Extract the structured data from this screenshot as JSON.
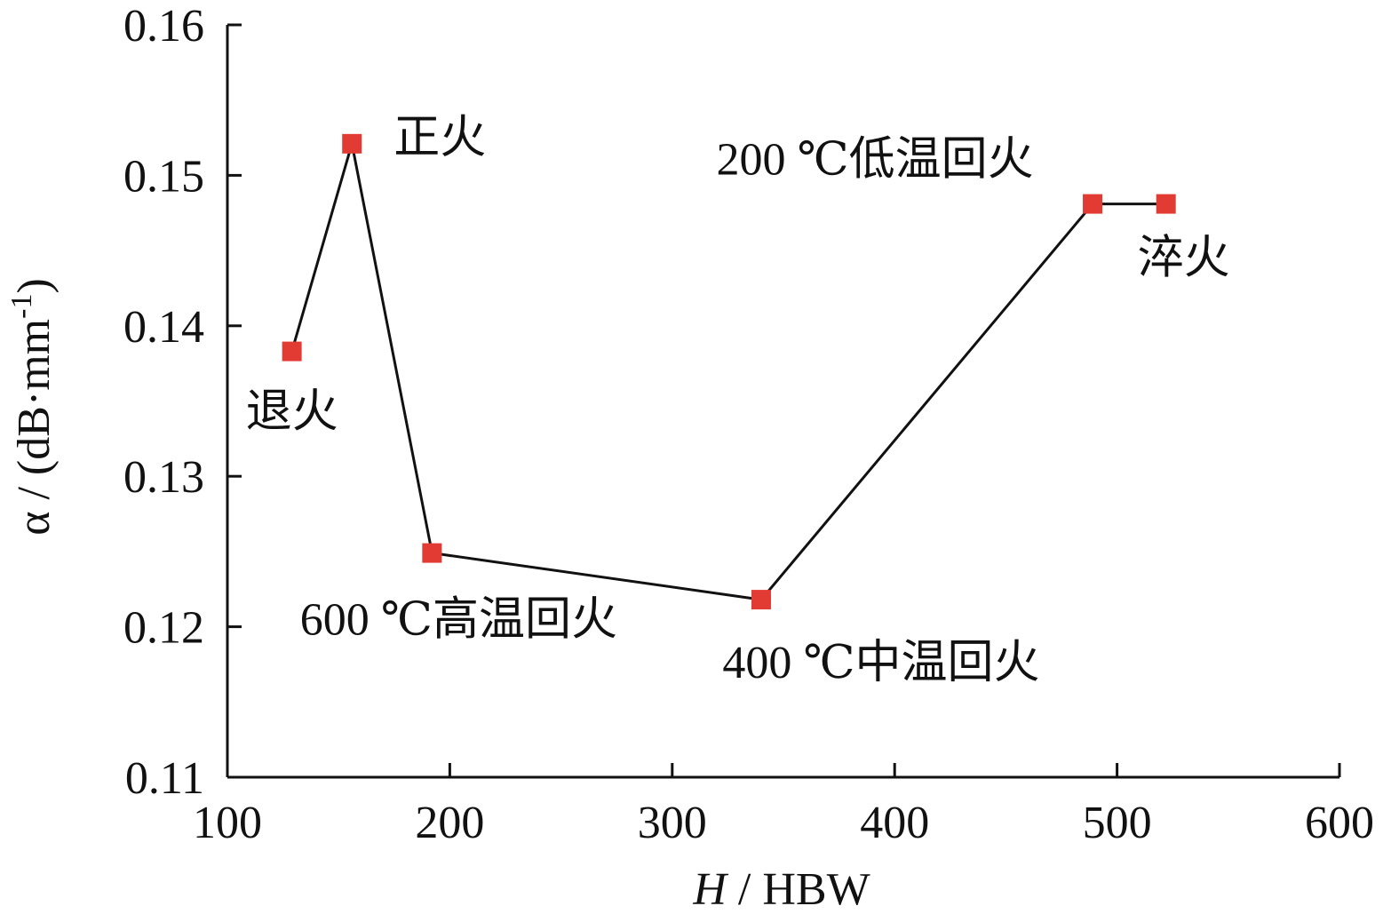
{
  "chart_data": {
    "type": "line",
    "title": "",
    "xlabel": {
      "italic": "H",
      "rest": " / HBW"
    },
    "ylabel": {
      "base": "α / (dB·mm",
      "sup": "-1",
      "close": ")"
    },
    "xlim": [
      100,
      600
    ],
    "ylim": [
      0.11,
      0.16
    ],
    "x_ticks": [
      100,
      200,
      300,
      400,
      500,
      600
    ],
    "x_tick_labels": [
      "100",
      "200",
      "300",
      "400",
      "500",
      "600"
    ],
    "y_ticks": [
      0.11,
      0.12,
      0.13,
      0.14,
      0.15,
      0.16
    ],
    "y_tick_labels": [
      "0.11",
      "0.12",
      "0.13",
      "0.14",
      "0.15",
      "0.16"
    ],
    "grid": false,
    "legend": "none",
    "marker": "square",
    "marker_color": "#e23b33",
    "line_color": "#111111",
    "series": [
      {
        "points": [
          {
            "x": 129,
            "y": 0.1383,
            "label": "退火"
          },
          {
            "x": 156,
            "y": 0.1521,
            "label": "正火"
          },
          {
            "x": 192,
            "y": 0.1249,
            "label": "600 ℃高温回火"
          },
          {
            "x": 340,
            "y": 0.1218,
            "label": "400 ℃中温回火"
          },
          {
            "x": 489,
            "y": 0.1481,
            "label": "200 ℃低温回火"
          },
          {
            "x": 522,
            "y": 0.1481,
            "label": "淬火"
          }
        ]
      }
    ]
  }
}
